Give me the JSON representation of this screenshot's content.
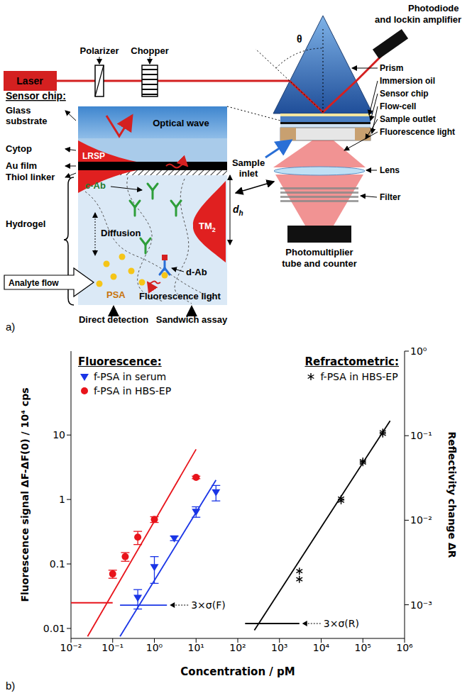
{
  "diagram": {
    "panel_label": "a)",
    "setup": {
      "laser": "Laser",
      "polarizer": "Polarizer",
      "chopper": "Chopper",
      "angle": "θ",
      "photodiode": [
        "Photodiode",
        "and lockin amplifier"
      ],
      "parts": [
        "Prism",
        "Immersion oil",
        "Sensor chip",
        "Flow-cell",
        "Sample outlet",
        "Fluorescence light"
      ],
      "sample_inlet": [
        "Sample",
        "inlet"
      ],
      "lens": "Lens",
      "filter": "Filter",
      "photomultiplier": [
        "Photomultiplier",
        "tube and counter"
      ]
    },
    "sensor_chip": {
      "title": "Sensor chip:",
      "layers": [
        [
          "Glass",
          "substrate"
        ],
        [
          "Cytop"
        ],
        [
          "Au film"
        ],
        [
          "Thiol linker"
        ],
        [
          "Hydrogel"
        ]
      ],
      "optical_wave": "Optical wave",
      "lrsp": "LRSP",
      "tm2": {
        "text": "TM",
        "sub": "2"
      },
      "thickness": {
        "text": "d",
        "sub": "h"
      },
      "capture_antibody": "c-Ab",
      "diffusion": "Diffusion",
      "analyte_flow": "Analyte flow",
      "detection_antibody": "d-Ab",
      "analyte": "PSA",
      "fluorescence": "Fluorescence light",
      "modes": [
        "Direct detection",
        "Sandwich assay"
      ]
    }
  },
  "chart_data": {
    "type": "scatter",
    "panel_label": "b)",
    "x_label": "Concentration / pM",
    "y_label": "Fluorescence signal ΔF-ΔF(0) / 10⁴ cps",
    "y2_label": "Reflectivity change ΔR",
    "log": true,
    "xlim": [
      0.01,
      1000000
    ],
    "xticks": [
      {
        "value": 0.01,
        "label": "10⁻²"
      },
      {
        "value": 0.1,
        "label": "10⁻¹"
      },
      {
        "value": 1,
        "label": "10⁰"
      },
      {
        "value": 10,
        "label": "10¹"
      },
      {
        "value": 100,
        "label": "10²"
      },
      {
        "value": 1000,
        "label": "10³"
      },
      {
        "value": 10000,
        "label": "10⁴"
      },
      {
        "value": 100000,
        "label": "10⁵"
      },
      {
        "value": 1000000,
        "label": "10⁶"
      }
    ],
    "ylim": [
      0.007,
      200
    ],
    "yticks": [
      0.01,
      0.1,
      1,
      10
    ],
    "y2lim": [
      0.0004,
      1
    ],
    "y2ticks": [
      {
        "value": 0.001,
        "label": "10⁻³"
      },
      {
        "value": 0.01,
        "label": "10⁻²"
      },
      {
        "value": 0.1,
        "label": "10⁻¹"
      },
      {
        "value": 1,
        "label": "10⁰"
      }
    ],
    "legend_groups": [
      {
        "title": "Fluorescence:",
        "legend": "upper left",
        "series": [
          0,
          1
        ]
      },
      {
        "title": "Refractometric:",
        "legend": "upper right",
        "series": [
          2
        ]
      }
    ],
    "series": [
      {
        "name": "f-PSA in serum",
        "color": "#1a35e6",
        "marker": "triangle-down",
        "x": [
          0.4,
          1,
          3,
          10,
          30
        ],
        "values": [
          0.03,
          0.09,
          0.25,
          0.65,
          1.3
        ],
        "errors": [
          0.01,
          0.04,
          0.02,
          0.12,
          0.35
        ]
      },
      {
        "name": "f-PSA in HBS-EP",
        "color": "#e8141b",
        "marker": "circle",
        "x": [
          0.1,
          0.2,
          0.4,
          1,
          10
        ],
        "values": [
          0.07,
          0.13,
          0.26,
          0.49,
          2.2
        ],
        "errors": [
          0.01,
          0.02,
          0.06,
          0.05,
          0.1
        ]
      },
      {
        "name": "f-PSA in HBS-EP",
        "color": "#000000",
        "marker": "asterisk",
        "axis": "y2",
        "x": [
          3000,
          3000,
          30000,
          30000,
          100000,
          100000,
          300000,
          300000
        ],
        "values": [
          0.0025,
          0.002,
          0.018,
          0.017,
          0.05,
          0.048,
          0.11,
          0.105
        ]
      },
      {
        "type": "line",
        "color": "#e8141b",
        "x": [
          0.025,
          10
        ],
        "values": [
          0.0075,
          6
        ]
      },
      {
        "type": "line",
        "color": "#1a35e6",
        "x": [
          0.15,
          30
        ],
        "values": [
          0.0075,
          2
        ]
      },
      {
        "type": "line",
        "color": "#000000",
        "axis": "y2",
        "x": [
          250,
          450000
        ],
        "values": [
          0.0005,
          0.15
        ]
      },
      {
        "type": "line",
        "color": "#e8141b",
        "x": [
          0.01,
          0.1
        ],
        "values": [
          0.025,
          0.025
        ]
      },
      {
        "type": "line",
        "color": "#1a35e6",
        "x": [
          0.15,
          2
        ],
        "values": [
          0.023,
          0.023
        ]
      },
      {
        "type": "line",
        "color": "#000000",
        "axis": "y2",
        "x": [
          150,
          3000
        ],
        "values": [
          0.0006,
          0.0006
        ]
      }
    ],
    "annotations": [
      {
        "text": "3×σ(F)",
        "x": 2,
        "y": 0.023
      },
      {
        "text": "3×σ(R)",
        "x": 3000,
        "y": 0.0006,
        "axis": "y2"
      }
    ]
  }
}
